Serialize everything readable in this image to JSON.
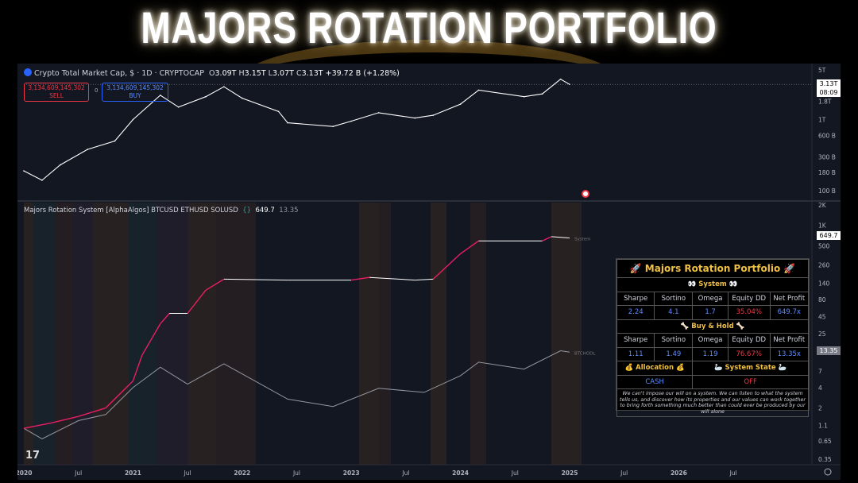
{
  "page_title": "MAJORS ROTATION PORTFOLIO",
  "top_chart": {
    "symbol_title": "Crypto Total Market Cap, $ · 1D · CRYPTOCAP",
    "ohlc_o_label": "O",
    "ohlc_o": "3.09T",
    "ohlc_h_label": "H",
    "ohlc_h": "3.15T",
    "ohlc_l_label": "L",
    "ohlc_l": "3.07T",
    "ohlc_c_label": "C",
    "ohlc_c": "3.13T",
    "change": "+39.72 B (+1.28%)",
    "sell_price": "3,134,609,145,302",
    "sell_label": "SELL",
    "buy_price": "3,134,609,145,302",
    "buy_label": "BUY",
    "spread": "0",
    "last_price": "3.13T",
    "countdown": "08:09",
    "price_axis_labels": [
      "5T",
      "1.8T",
      "1T",
      "600 B",
      "300 B",
      "180 B",
      "100 B"
    ]
  },
  "bottom_chart": {
    "indicator_title": "Majors Rotation System [AlphaAlgos] BTCUSD ETHUSD SOLUSD",
    "value_1": "649.7",
    "value_2": "13.35",
    "system_tag": "System",
    "hodl_tag": "BTCHODL",
    "system_last": "649.7",
    "hodl_last": "13.35",
    "price_axis_labels": [
      "2K",
      "1K",
      "500",
      "260",
      "140",
      "80",
      "45",
      "25",
      "7",
      "4",
      "2",
      "1.1",
      "0.65",
      "0.35"
    ]
  },
  "time_axis_labels": [
    "2020",
    "Jul",
    "2021",
    "Jul",
    "2022",
    "Jul",
    "2023",
    "Jul",
    "2024",
    "Jul",
    "2025",
    "Jul",
    "2026",
    "Jul"
  ],
  "tv_logo": "17",
  "panel": {
    "title": "🚀 Majors Rotation Portfolio 🚀",
    "system_header": "👀 System 👀",
    "col_sharpe": "Sharpe",
    "col_sortino": "Sortino",
    "col_omega": "Omega",
    "col_equity_dd": "Equity DD",
    "col_net_profit": "Net Profit",
    "system_values": {
      "sharpe": "2.24",
      "sortino": "4.1",
      "omega": "1.7",
      "equity_dd": "35.04%",
      "net_profit": "649.7x"
    },
    "hold_header": "🦴 Buy & Hold 🦴",
    "hold_values": {
      "sharpe": "1.11",
      "sortino": "1.49",
      "omega": "1.19",
      "equity_dd": "76.67%",
      "net_profit": "13.35x"
    },
    "allocation_header": "💰 Allocation 💰",
    "state_header": "🦢 System State 🦢",
    "allocation_value": "CASH",
    "state_value": "OFF",
    "note": "We can't impose our will on a system. We can listen to what the system tells us, and discover how its properties and our values can work together to bring forth something much better than could ever be produced by our will alone"
  },
  "colors": {
    "background": "#131722",
    "price_line": "#ffffff",
    "system_up": "#e91e63",
    "system_flat": "#ffffff",
    "hodl_line": "#9598a1",
    "accent": "#2962ff",
    "panel_gold": "#f0c043",
    "panel_blue": "#5b8cff",
    "panel_red": "#f23645"
  },
  "chart_data": [
    {
      "type": "line",
      "title": "Crypto Total Market Cap, $ · 1D · CRYPTOCAP",
      "y_scale": "log",
      "ylim": [
        "100 B",
        "5T"
      ],
      "series": [
        {
          "values_in_billions": [
            [
              "2020-01",
              190
            ],
            [
              "2020-03",
              140
            ],
            [
              "2020-05",
              230
            ],
            [
              "2020-08",
              380
            ],
            [
              "2020-11",
              500
            ],
            [
              "2021-01",
              1000
            ],
            [
              "2021-04",
              2200
            ],
            [
              "2021-06",
              1500
            ],
            [
              "2021-09",
              2100
            ],
            [
              "2021-11",
              2900
            ],
            [
              "2022-01",
              2000
            ],
            [
              "2022-05",
              1300
            ],
            [
              "2022-06",
              900
            ],
            [
              "2022-11",
              800
            ],
            [
              "2023-01",
              950
            ],
            [
              "2023-04",
              1250
            ],
            [
              "2023-08",
              1050
            ],
            [
              "2023-10",
              1150
            ],
            [
              "2024-01",
              1650
            ],
            [
              "2024-03",
              2600
            ],
            [
              "2024-08",
              2100
            ],
            [
              "2024-10",
              2300
            ],
            [
              "2024-12",
              3700
            ],
            [
              "2025-01",
              3130
            ]
          ]
        }
      ]
    },
    {
      "type": "line",
      "title": "Majors Rotation System [AlphaAlgos] BTCUSD ETHUSD SOLUSD",
      "y_scale": "log",
      "ylim": [
        0.35,
        2000
      ],
      "series": [
        {
          "name": "System",
          "values": [
            [
              "2020-01",
              1.0
            ],
            [
              "2020-04",
              1.2
            ],
            [
              "2020-07",
              1.5
            ],
            [
              "2020-10",
              2.0
            ],
            [
              "2021-01",
              5
            ],
            [
              "2021-02",
              12
            ],
            [
              "2021-04",
              35
            ],
            [
              "2021-05",
              50
            ],
            [
              "2021-07",
              50
            ],
            [
              "2021-09",
              110
            ],
            [
              "2021-11",
              160
            ],
            [
              "2022-06",
              155
            ],
            [
              "2023-01",
              155
            ],
            [
              "2023-03",
              170
            ],
            [
              "2023-08",
              155
            ],
            [
              "2023-10",
              160
            ],
            [
              "2024-01",
              380
            ],
            [
              "2024-03",
              590
            ],
            [
              "2024-10",
              590
            ],
            [
              "2024-11",
              680
            ],
            [
              "2025-01",
              649.7
            ]
          ]
        },
        {
          "name": "BTCHODL",
          "values": [
            [
              "2020-01",
              1.0
            ],
            [
              "2020-03",
              0.7
            ],
            [
              "2020-07",
              1.3
            ],
            [
              "2020-10",
              1.6
            ],
            [
              "2021-01",
              4
            ],
            [
              "2021-04",
              8
            ],
            [
              "2021-07",
              4.5
            ],
            [
              "2021-11",
              9
            ],
            [
              "2022-06",
              2.7
            ],
            [
              "2022-11",
              2.1
            ],
            [
              "2023-04",
              3.9
            ],
            [
              "2023-09",
              3.4
            ],
            [
              "2024-01",
              6
            ],
            [
              "2024-03",
              9.5
            ],
            [
              "2024-08",
              7.5
            ],
            [
              "2024-12",
              14
            ],
            [
              "2025-01",
              13.35
            ]
          ]
        }
      ]
    }
  ]
}
